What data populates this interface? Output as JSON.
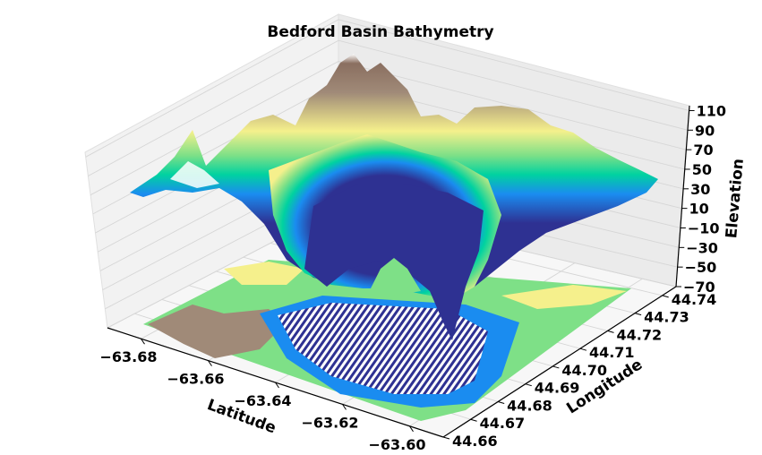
{
  "chart_data": {
    "type": "surface3d",
    "title": "Bedford Basin Bathymetry",
    "xlabel": "Latitude",
    "ylabel": "Longitude",
    "zlabel": "Elevation",
    "x_ticks": [
      "−63.68",
      "−63.66",
      "−63.64",
      "−63.62",
      "−63.60"
    ],
    "y_ticks": [
      "44.66",
      "44.67",
      "44.68",
      "44.69",
      "44.70",
      "44.71",
      "44.72",
      "44.73",
      "44.74"
    ],
    "z_ticks": [
      "−70",
      "−50",
      "−30",
      "−10",
      "10",
      "30",
      "50",
      "70",
      "90",
      "110"
    ],
    "x_range": [
      -63.69,
      -63.59
    ],
    "y_range": [
      44.66,
      44.745
    ],
    "z_range": [
      -70,
      115
    ],
    "colormap": "terrain",
    "grid": true,
    "has_contour_projection": true,
    "colors": {
      "deep": "#2e3192",
      "mid_water": "#1a8cf0",
      "shallow": "#00d2a0",
      "lowland": "#7ee087",
      "plain": "#f5f08c",
      "hills": "#a08a78",
      "peaks": "#ffffff"
    }
  }
}
